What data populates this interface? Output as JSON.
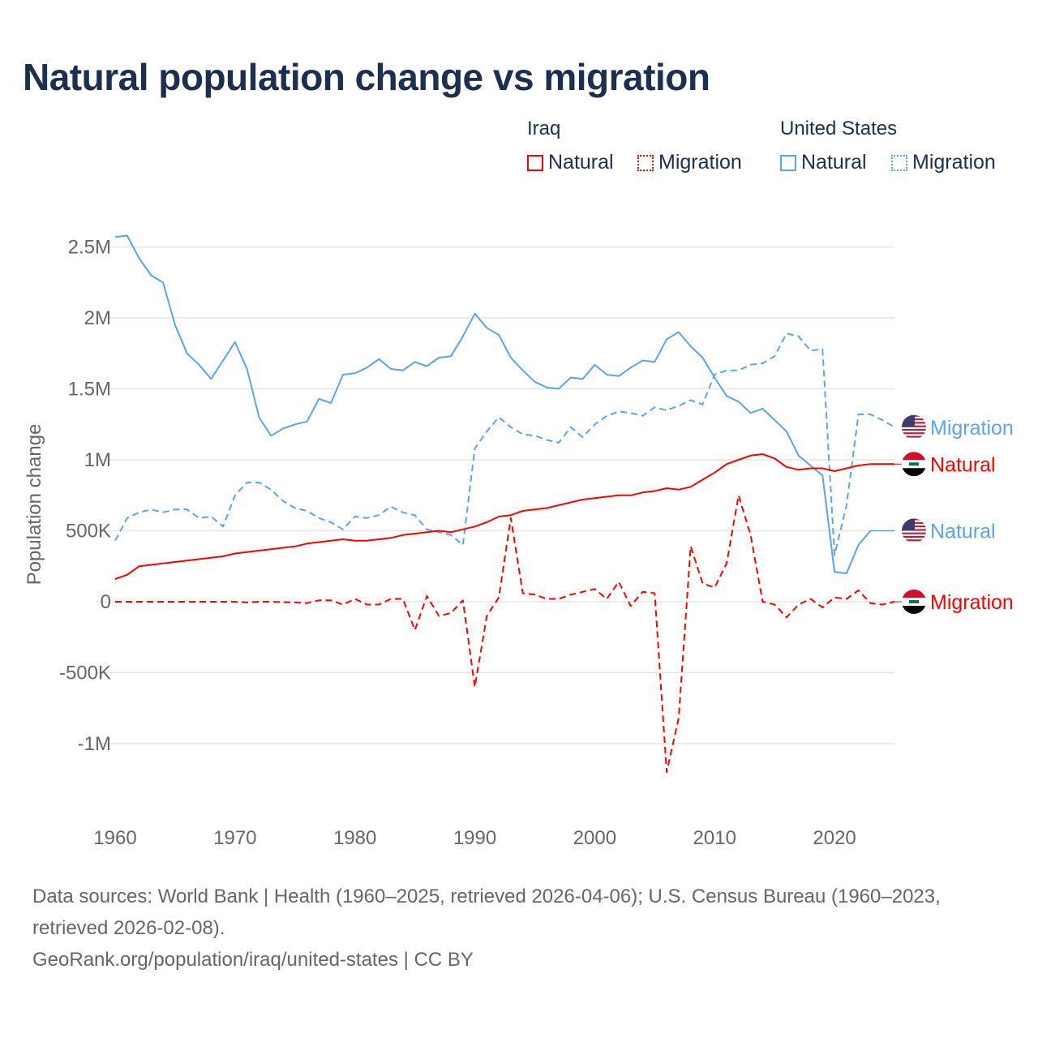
{
  "chart_data": {
    "type": "line",
    "title": "Natural population change vs migration",
    "ylabel": "Population change",
    "xlabel": "",
    "xlim": [
      1960,
      2025
    ],
    "ylim": [
      -1400000,
      2700000
    ],
    "grid": true,
    "xticks": [
      1960,
      1970,
      1980,
      1990,
      2000,
      2010,
      2020
    ],
    "xtick_labels": [
      "1960",
      "1970",
      "1980",
      "1990",
      "2000",
      "2010",
      "2020"
    ],
    "yticks": [
      2500000,
      2000000,
      1500000,
      1000000,
      500000,
      0,
      -500000,
      -1000000
    ],
    "ytick_labels": [
      "2.5M",
      "2M",
      "1.5M",
      "1M",
      "500K",
      "0",
      "-500K",
      "-1M"
    ],
    "legend": {
      "placement": "top-right",
      "groups": [
        {
          "name": "Iraq",
          "entries": [
            "Natural",
            "Migration"
          ]
        },
        {
          "name": "United States",
          "entries": [
            "Natural",
            "Migration"
          ]
        }
      ]
    },
    "series": [
      {
        "name": "United States Natural",
        "country": "United States",
        "kind": "Natural",
        "color": "#5ba5e8",
        "dash": false,
        "start": 1960,
        "end_label": "Natural",
        "extend_to": 2025,
        "values": [
          2.57,
          2.58,
          2.42,
          2.3,
          2.25,
          1.95,
          1.75,
          1.67,
          1.57,
          1.7,
          1.83,
          1.64,
          1.3,
          1.17,
          1.22,
          1.25,
          1.27,
          1.43,
          1.4,
          1.6,
          1.61,
          1.65,
          1.71,
          1.64,
          1.63,
          1.69,
          1.66,
          1.72,
          1.73,
          1.87,
          2.03,
          1.93,
          1.88,
          1.72,
          1.63,
          1.55,
          1.51,
          1.5,
          1.58,
          1.57,
          1.67,
          1.6,
          1.59,
          1.65,
          1.7,
          1.69,
          1.85,
          1.9,
          1.8,
          1.72,
          1.58,
          1.45,
          1.41,
          1.33,
          1.36,
          1.28,
          1.2,
          1.03,
          0.96,
          0.89,
          0.21,
          0.2,
          0.4,
          0.5
        ]
      },
      {
        "name": "United States Migration",
        "country": "United States",
        "kind": "Migration",
        "color": "#5ba5e8",
        "dash": true,
        "start": 1960,
        "end_label": "Migration",
        "values": [
          0.43,
          0.59,
          0.63,
          0.65,
          0.63,
          0.65,
          0.65,
          0.59,
          0.6,
          0.53,
          0.75,
          0.84,
          0.84,
          0.79,
          0.71,
          0.66,
          0.64,
          0.59,
          0.56,
          0.51,
          0.6,
          0.59,
          0.61,
          0.67,
          0.63,
          0.61,
          0.51,
          0.49,
          0.47,
          0.4,
          1.08,
          1.2,
          1.3,
          1.23,
          1.18,
          1.17,
          1.14,
          1.12,
          1.23,
          1.16,
          1.25,
          1.31,
          1.34,
          1.33,
          1.31,
          1.37,
          1.35,
          1.38,
          1.42,
          1.39,
          1.6,
          1.63,
          1.63,
          1.67,
          1.68,
          1.73,
          1.89,
          1.87,
          1.77,
          1.78,
          0.33,
          0.68,
          1.32,
          1.32,
          1.28,
          1.23
        ]
      },
      {
        "name": "Iraq Natural",
        "country": "Iraq",
        "kind": "Natural",
        "color": "#ff0000",
        "dash": false,
        "start": 1960,
        "end_label": "Natural",
        "values": [
          0.16,
          0.19,
          0.25,
          0.26,
          0.27,
          0.28,
          0.29,
          0.3,
          0.31,
          0.32,
          0.34,
          0.35,
          0.36,
          0.37,
          0.38,
          0.39,
          0.41,
          0.42,
          0.43,
          0.44,
          0.43,
          0.43,
          0.44,
          0.45,
          0.47,
          0.48,
          0.49,
          0.5,
          0.49,
          0.51,
          0.53,
          0.56,
          0.6,
          0.61,
          0.64,
          0.65,
          0.66,
          0.68,
          0.7,
          0.72,
          0.73,
          0.74,
          0.75,
          0.75,
          0.77,
          0.78,
          0.8,
          0.79,
          0.81,
          0.86,
          0.91,
          0.97,
          1.0,
          1.03,
          1.04,
          1.01,
          0.95,
          0.93,
          0.94,
          0.94,
          0.92,
          0.94,
          0.96,
          0.97,
          0.97,
          0.97
        ]
      },
      {
        "name": "Iraq Migration",
        "country": "Iraq",
        "kind": "Migration",
        "color": "#ff0000",
        "dash": true,
        "start": 1960,
        "end_label": "Migration",
        "values": [
          0,
          0,
          0,
          0,
          0,
          0,
          0,
          0,
          0,
          0,
          0,
          -0.005,
          0,
          0,
          -0.003,
          -0.005,
          -0.01,
          0.01,
          0.01,
          -0.02,
          0.02,
          -0.02,
          -0.02,
          0.02,
          0.02,
          -0.2,
          0.04,
          -0.1,
          -0.08,
          0.01,
          -0.6,
          -0.1,
          0.03,
          0.59,
          0.06,
          0.05,
          0.02,
          0.02,
          0.05,
          0.07,
          0.09,
          0.02,
          0.14,
          -0.03,
          0.07,
          0.06,
          -1.2,
          -0.82,
          0.39,
          0.13,
          0.1,
          0.27,
          0.75,
          0.47,
          0.0,
          -0.02,
          -0.11,
          -0.02,
          0.02,
          -0.04,
          0.03,
          0.02,
          0.08,
          -0.01,
          -0.02,
          0.0
        ]
      }
    ],
    "value_unit": "millions"
  },
  "title": "Natural population change vs migration",
  "legend": {
    "iraq": "Iraq",
    "us": "United States",
    "natural": "Natural",
    "migration": "Migration"
  },
  "footer": {
    "line1": "Data sources: World Bank | Health (1960–2025, retrieved 2026-04-06); U.S. Census Bureau (1960–2023,",
    "line2": "retrieved 2026-02-08).",
    "line3": "GeoRank.org/population/iraq/united-states | CC BY"
  },
  "colors": {
    "iraq": "#ff0000",
    "us": "#5ba5e8",
    "title": "#1b3050",
    "grid": "#e6e6e6",
    "axis_text": "#666666"
  }
}
